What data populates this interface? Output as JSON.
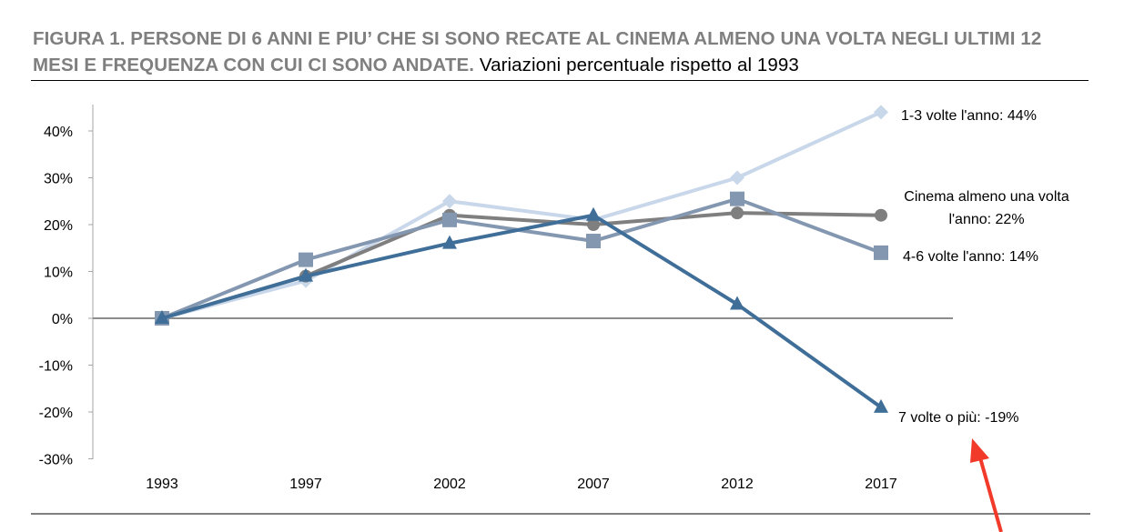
{
  "title": "FIGURA 1. PERSONE DI 6 ANNI E PIU’ CHE SI SONO RECATE AL CINEMA ALMENO UNA VOLTA NEGLI ULTIMI 12 MESI E FREQUENZA CON CUI CI SONO ANDATE.",
  "subtitle": "Variazioni percentuale rispetto al 1993",
  "chart_data": {
    "type": "line",
    "title": "FIGURA 1. PERSONE DI 6 ANNI E PIU’ CHE SI SONO RECATE AL CINEMA ALMENO UNA VOLTA NEGLI ULTIMI 12 MESI E FREQUENZA CON CUI CI SONO ANDATE.",
    "subtitle": "Variazioni percentuale rispetto al 1993",
    "categories": [
      "1993",
      "1997",
      "2002",
      "2007",
      "2012",
      "2017"
    ],
    "ylim": [
      -30,
      40
    ],
    "yticks": [
      "-30%",
      "-20%",
      "-10%",
      "0%",
      "10%",
      "20%",
      "30%",
      "40%"
    ],
    "grid": false,
    "series": [
      {
        "name": "1-3 volte l'anno: 44%",
        "values": [
          0,
          8,
          25,
          21,
          30,
          44
        ],
        "color": "#c9d7ea",
        "marker": "diamond"
      },
      {
        "name": "Cinema almeno una volta l'anno: 22%",
        "values": [
          0,
          9,
          22,
          20,
          22.5,
          22
        ],
        "color": "#7f7f7f",
        "marker": "circle"
      },
      {
        "name": "4-6 volte l'anno: 14%",
        "values": [
          0,
          12.5,
          21,
          16.5,
          25.5,
          14
        ],
        "color": "#8497b0",
        "marker": "square"
      },
      {
        "name": "7 volte o più: -19%",
        "values": [
          0,
          9,
          16,
          22,
          3,
          -19
        ],
        "color": "#3f6e98",
        "marker": "triangle"
      }
    ],
    "labels": {
      "s0": "1-3 volte l'anno: 44%",
      "s1a": "Cinema almeno una volta",
      "s1b": "l'anno: 22%",
      "s2": "4-6 volte l'anno: 14%",
      "s3": "7 volte o più: -19%"
    },
    "annotation_arrow_color": "#f23a2a"
  }
}
